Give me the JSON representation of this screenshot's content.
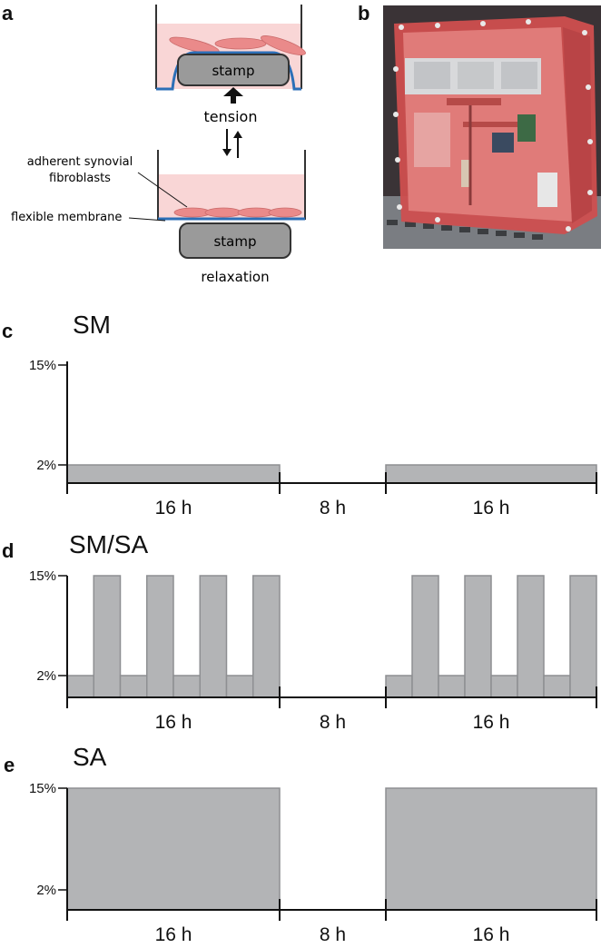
{
  "panels": {
    "a": "a",
    "b": "b",
    "c": "c",
    "d": "d",
    "e": "e"
  },
  "schematic": {
    "stamp_top": "stamp",
    "stamp_bottom": "stamp",
    "tension": "tension",
    "relaxation": "relaxation",
    "cells_label_line1": "adherent synovial",
    "cells_label_line2": "fibroblasts",
    "membrane_label": "flexible membrane"
  },
  "colors": {
    "bar_fill": "#b3b4b6",
    "bar_stroke": "#8e8f92",
    "medium": "#f9d6d6",
    "cell": "#ea8a8a",
    "membrane": "#2c6fb7",
    "stamp": "#9a9a9a"
  },
  "chart_data": [
    {
      "type": "area",
      "title": "SM",
      "y_ticks": [
        "15%",
        "2%"
      ],
      "segments": [
        "16 h",
        "8 h",
        "16 h"
      ],
      "profile_16h_block": [
        {
          "strain_pct": 2,
          "duration_h": 16
        }
      ],
      "pause_strain_pct": 0
    },
    {
      "type": "area",
      "title": "SM/SA",
      "y_ticks": [
        "15%",
        "2%"
      ],
      "segments": [
        "16 h",
        "8 h",
        "16 h"
      ],
      "profile_16h_block": [
        {
          "strain_pct": 2,
          "duration_h": 2
        },
        {
          "strain_pct": 15,
          "duration_h": 2
        },
        {
          "strain_pct": 2,
          "duration_h": 2
        },
        {
          "strain_pct": 15,
          "duration_h": 2
        },
        {
          "strain_pct": 2,
          "duration_h": 2
        },
        {
          "strain_pct": 15,
          "duration_h": 2
        },
        {
          "strain_pct": 2,
          "duration_h": 2
        },
        {
          "strain_pct": 15,
          "duration_h": 2
        }
      ],
      "pause_strain_pct": 0
    },
    {
      "type": "area",
      "title": "SA",
      "y_ticks": [
        "15%",
        "2%"
      ],
      "segments": [
        "16 h",
        "8 h",
        "16 h"
      ],
      "profile_16h_block": [
        {
          "strain_pct": 15,
          "duration_h": 16
        }
      ],
      "pause_strain_pct": 0
    }
  ]
}
